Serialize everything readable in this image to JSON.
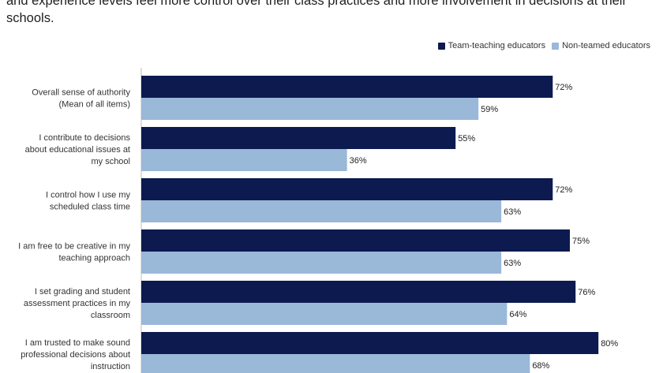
{
  "title": "and experience levels feel more control over their class practices and more involvement in decisions at their schools.",
  "colors": {
    "team": "#0c1a4f",
    "nonteam": "#9ab8d8",
    "axis": "#bdbdbd"
  },
  "chart_data": {
    "type": "bar",
    "orientation": "horizontal",
    "title": "",
    "xlabel": "",
    "ylabel": "",
    "xlim": [
      0,
      100
    ],
    "grid": false,
    "legend_position": "top-right",
    "value_suffix": "%",
    "categories": [
      [
        "Overall sense of authority",
        "(Mean of all items)"
      ],
      [
        "I contribute to decisions",
        "about educational issues at",
        "my school"
      ],
      [
        "I control how I use my",
        "scheduled class time"
      ],
      [
        "I am free to be creative in my",
        "teaching approach"
      ],
      [
        "I set grading and student",
        "assessment practices in my",
        "classroom"
      ],
      [
        "I am trusted to make sound",
        "professional decisions about",
        "instruction"
      ]
    ],
    "series": [
      {
        "name": "Team-teaching educators",
        "values": [
          72,
          55,
          72,
          75,
          76,
          80
        ],
        "labels": [
          "72%",
          "55%",
          "72%",
          "75%",
          "76%",
          "80%"
        ]
      },
      {
        "name": "Non-teamed educators",
        "values": [
          59,
          36,
          63,
          63,
          64,
          68
        ],
        "labels": [
          "59%",
          "36%",
          "63%",
          "63%",
          "64%",
          "68%"
        ]
      }
    ]
  }
}
